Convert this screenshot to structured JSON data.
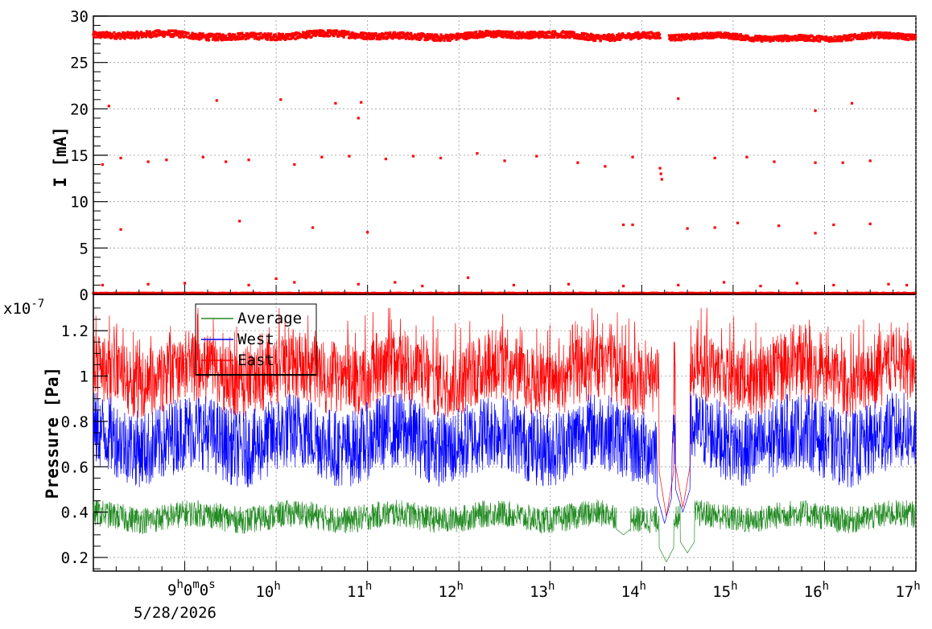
{
  "chart_data": [
    {
      "type": "scatter",
      "ylabel": "I [mA]",
      "ylim": [
        0,
        30
      ],
      "yticks": [
        "0",
        "5",
        "10",
        "15",
        "20",
        "25",
        "30"
      ],
      "grid": true,
      "series": [
        {
          "color": "#ff0000",
          "bands": [
            {
              "start": 8.0,
              "end": 14.2,
              "center": 27.9,
              "spread": 0.35
            },
            {
              "start": 14.3,
              "end": 17.0,
              "center": 27.7,
              "spread": 0.3
            }
          ],
          "outliers": [
            [
              8.17,
              20.3
            ],
            [
              9.35,
              20.9
            ],
            [
              10.05,
              21.0
            ],
            [
              10.65,
              20.6
            ],
            [
              10.93,
              20.7
            ],
            [
              10.9,
              19.0
            ],
            [
              14.4,
              21.1
            ],
            [
              15.9,
              19.8
            ],
            [
              16.3,
              20.6
            ],
            [
              8.1,
              14.0
            ],
            [
              8.3,
              14.7
            ],
            [
              8.6,
              14.3
            ],
            [
              8.8,
              14.5
            ],
            [
              9.2,
              14.8
            ],
            [
              9.45,
              14.3
            ],
            [
              9.7,
              14.5
            ],
            [
              10.2,
              14.0
            ],
            [
              10.5,
              14.8
            ],
            [
              10.8,
              14.9
            ],
            [
              11.2,
              14.6
            ],
            [
              11.5,
              14.9
            ],
            [
              11.8,
              14.7
            ],
            [
              12.2,
              15.2
            ],
            [
              12.5,
              14.4
            ],
            [
              12.85,
              14.9
            ],
            [
              13.3,
              14.2
            ],
            [
              13.6,
              13.8
            ],
            [
              13.9,
              14.8
            ],
            [
              14.8,
              14.7
            ],
            [
              15.15,
              14.8
            ],
            [
              15.45,
              14.3
            ],
            [
              15.9,
              14.2
            ],
            [
              16.2,
              14.2
            ],
            [
              16.5,
              14.4
            ],
            [
              14.2,
              13.6
            ],
            [
              14.21,
              13.0
            ],
            [
              14.22,
              12.4
            ],
            [
              8.3,
              7.0
            ],
            [
              9.6,
              7.9
            ],
            [
              10.4,
              7.2
            ],
            [
              11.0,
              6.7
            ],
            [
              13.8,
              7.5
            ],
            [
              13.9,
              7.5
            ],
            [
              14.5,
              7.1
            ],
            [
              14.8,
              7.2
            ],
            [
              15.05,
              7.7
            ],
            [
              15.5,
              7.4
            ],
            [
              15.9,
              6.6
            ],
            [
              16.1,
              7.5
            ],
            [
              16.5,
              7.6
            ],
            [
              8.1,
              1.0
            ],
            [
              8.6,
              1.1
            ],
            [
              9.0,
              1.2
            ],
            [
              9.7,
              1.0
            ],
            [
              10.0,
              1.7
            ],
            [
              10.2,
              1.3
            ],
            [
              10.9,
              1.1
            ],
            [
              11.3,
              1.3
            ],
            [
              11.6,
              0.9
            ],
            [
              12.1,
              1.8
            ],
            [
              12.6,
              1.0
            ],
            [
              13.2,
              1.1
            ],
            [
              13.8,
              0.9
            ],
            [
              14.4,
              1.0
            ],
            [
              14.9,
              1.3
            ],
            [
              15.3,
              0.9
            ],
            [
              15.7,
              1.2
            ],
            [
              16.1,
              1.0
            ],
            [
              16.7,
              1.1
            ],
            [
              16.9,
              1.0
            ]
          ],
          "baseline": 0.05
        }
      ]
    },
    {
      "type": "line",
      "ylabel": "Pressure [Pa]",
      "exponent": "x10",
      "exponent_power": "-7",
      "ylim": [
        0.14,
        1.36
      ],
      "yticks": [
        "0.2",
        "0.4",
        "0.6",
        "0.8",
        "1",
        "1.2"
      ],
      "xlim": [
        8.0,
        17.0
      ],
      "x_start_label": {
        "time_h": "9",
        "time_m": "0",
        "time_s": "0",
        "date": "5/28/2026"
      },
      "xticks": [
        {
          "value": 10,
          "label": "10",
          "sup": "h"
        },
        {
          "value": 11,
          "label": "11",
          "sup": "h"
        },
        {
          "value": 12,
          "label": "12",
          "sup": "h"
        },
        {
          "value": 13,
          "label": "13",
          "sup": "h"
        },
        {
          "value": 14,
          "label": "14",
          "sup": "h"
        },
        {
          "value": 15,
          "label": "15",
          "sup": "h"
        },
        {
          "value": 16,
          "label": "16",
          "sup": "h"
        },
        {
          "value": 17,
          "label": "17",
          "sup": "h"
        }
      ],
      "grid": true,
      "legend": {
        "placement": "top-left"
      },
      "series": [
        {
          "name": "Average",
          "color": "#228b22",
          "base": 0.38,
          "amp": 0.06,
          "dips": [
            [
              13.8,
              0.3
            ],
            [
              14.27,
              0.18
            ],
            [
              14.5,
              0.22
            ]
          ]
        },
        {
          "name": "West",
          "color": "#0000ff",
          "base": 0.72,
          "amp": 0.17,
          "dips": [
            [
              14.25,
              0.35
            ],
            [
              14.45,
              0.4
            ]
          ]
        },
        {
          "name": "East",
          "color": "#ff0000",
          "base": 1.0,
          "amp": 0.15,
          "dips": [
            [
              14.27,
              0.38
            ],
            [
              14.45,
              0.42
            ]
          ]
        }
      ]
    }
  ]
}
